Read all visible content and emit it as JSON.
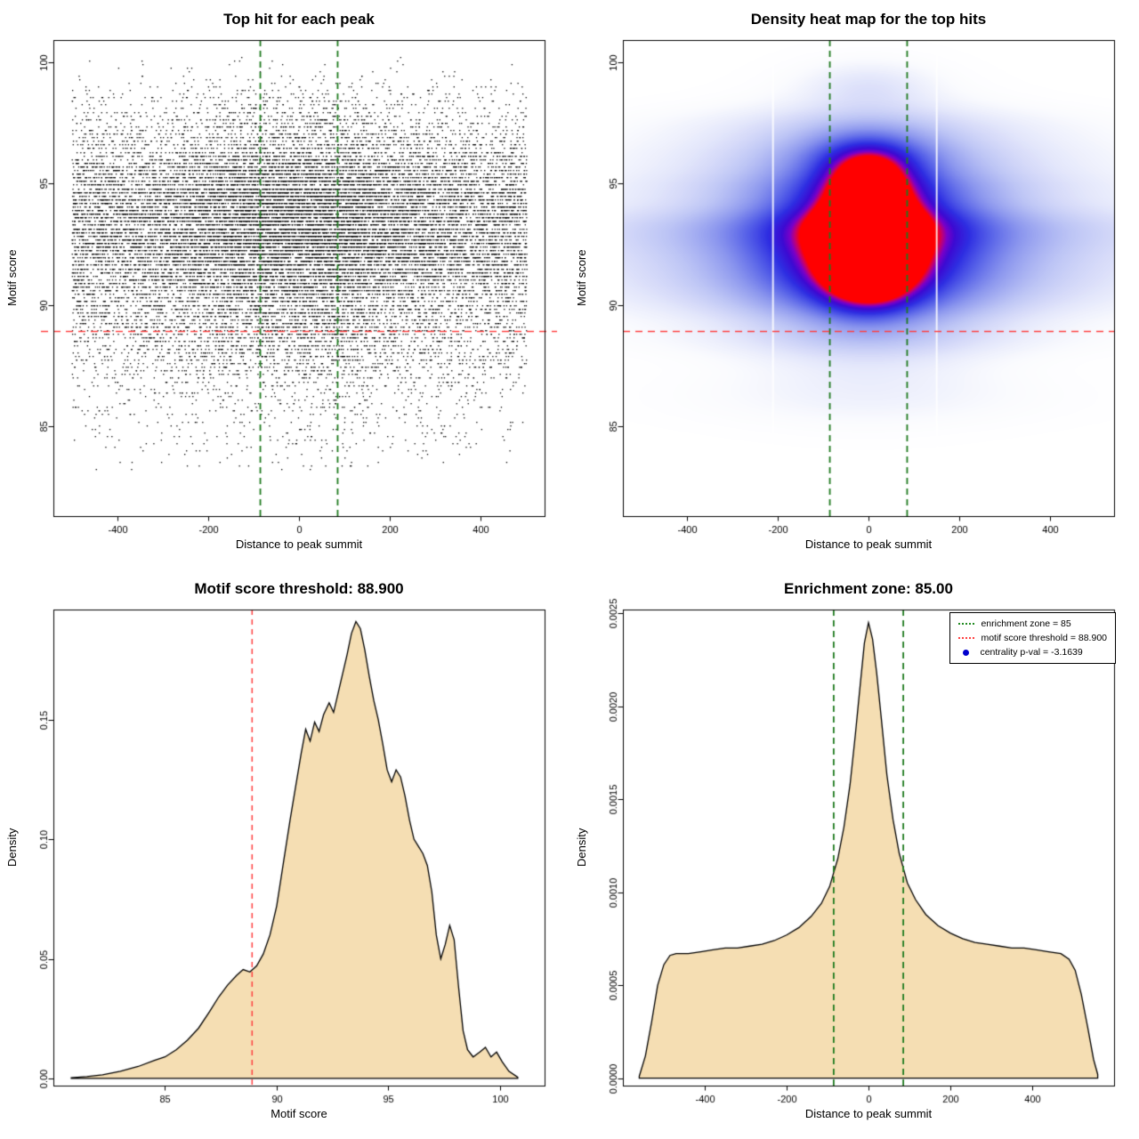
{
  "figure": {
    "background": "#ffffff"
  },
  "chart_data": [
    {
      "type": "scatter",
      "title": "Top hit for each peak",
      "xlabel": "Distance to peak summit",
      "ylabel": "Motif score",
      "xlim": [
        -540,
        540
      ],
      "ylim": [
        81.3,
        100.9
      ],
      "xticks": {
        "values": [
          -400,
          -200,
          0,
          200,
          400
        ],
        "labels": [
          "-400",
          "-200",
          "0",
          "200",
          "400"
        ]
      },
      "yticks": {
        "values": [
          85,
          90,
          95,
          100
        ],
        "labels": [
          "85",
          "90",
          "95",
          "100"
        ]
      },
      "point_color": "#000000",
      "n_points": 22000,
      "seed": 1234,
      "x_uniform_frac": 0.72,
      "x_uniform_range": [
        -500,
        500
      ],
      "x_normal_sd": 150,
      "score_band_step": 0.15,
      "score_range": [
        83.2,
        100.2
      ],
      "score_mixture": [
        {
          "mean": 93.3,
          "sd": 1.5,
          "w": 0.48
        },
        {
          "mean": 91.2,
          "sd": 1.6,
          "w": 0.2
        },
        {
          "mean": 95.4,
          "sd": 1.1,
          "w": 0.14
        },
        {
          "mean": 88.8,
          "sd": 1.4,
          "w": 0.1
        },
        {
          "mean": 97.6,
          "sd": 1.0,
          "w": 0.05
        },
        {
          "mean": 86.2,
          "sd": 1.8,
          "w": 0.03
        }
      ],
      "threshold_line": {
        "y": 88.9,
        "color": "#ff4040"
      },
      "zone_lines": {
        "x": [
          -85,
          85
        ],
        "color": "#1f7a1f"
      }
    },
    {
      "type": "heatmap",
      "title": "Density heat map for the top hits",
      "xlabel": "Distance to peak summit",
      "ylabel": "Motif score",
      "xlim": [
        -540,
        540
      ],
      "ylim": [
        81.3,
        100.9
      ],
      "xticks": {
        "values": [
          -400,
          -200,
          0,
          200,
          400
        ],
        "labels": [
          "-400",
          "-200",
          "0",
          "200",
          "400"
        ]
      },
      "yticks": {
        "values": [
          85,
          90,
          95,
          100
        ],
        "labels": [
          "85",
          "90",
          "95",
          "100"
        ]
      },
      "colormap": [
        [
          0.0,
          "#ffffff"
        ],
        [
          0.04,
          "#fafbfe"
        ],
        [
          0.12,
          "#e3e6fb"
        ],
        [
          0.25,
          "#bcc4f5"
        ],
        [
          0.4,
          "#8b96ee"
        ],
        [
          0.55,
          "#5560e8"
        ],
        [
          0.68,
          "#2e2ee2"
        ],
        [
          0.8,
          "#3c0ad2"
        ],
        [
          0.88,
          "#7a00c8"
        ],
        [
          0.94,
          "#c40070"
        ],
        [
          1.0,
          "#ff0000"
        ]
      ],
      "components": [
        {
          "cx": 0,
          "cy": 93.3,
          "sx": 38,
          "sy": 0.7,
          "a": 1.5
        },
        {
          "cx": 0,
          "cy": 93.0,
          "sx": 75,
          "sy": 1.4,
          "a": 0.85
        },
        {
          "cx": 0,
          "cy": 92.8,
          "sx": 160,
          "sy": 2.2,
          "a": 0.5
        },
        {
          "cx": 0,
          "cy": 92.6,
          "sx": 200,
          "sy": 3.0,
          "a": 0.28
        },
        {
          "cx": 0,
          "cy": 91.0,
          "sx": 70,
          "sy": 0.9,
          "a": 0.45
        },
        {
          "cx": 0,
          "cy": 95.3,
          "sx": 60,
          "sy": 0.8,
          "a": 0.42
        },
        {
          "cx": 0,
          "cy": 96.2,
          "sx": 100,
          "sy": 0.8,
          "a": 0.22
        },
        {
          "cx": 0,
          "cy": 99.0,
          "sx": 100,
          "sy": 0.7,
          "a": 0.1
        },
        {
          "cx": 0,
          "cy": 93.3,
          "sx": 420,
          "sy": 0.75,
          "a": 0.28
        },
        {
          "cx": 0,
          "cy": 92.1,
          "sx": 420,
          "sy": 0.8,
          "a": 0.22
        },
        {
          "cx": 0,
          "cy": 90.9,
          "sx": 400,
          "sy": 0.7,
          "a": 0.18
        },
        {
          "cx": 0,
          "cy": 94.9,
          "sx": 400,
          "sy": 0.6,
          "a": 0.16
        },
        {
          "cx": 0,
          "cy": 96.1,
          "sx": 380,
          "sy": 0.6,
          "a": 0.12
        },
        {
          "cx": 0,
          "cy": 97.3,
          "sx": 350,
          "sy": 0.65,
          "a": 0.1
        },
        {
          "cx": 0,
          "cy": 89.9,
          "sx": 400,
          "sy": 0.6,
          "a": 0.1
        },
        {
          "cx": 0,
          "cy": 88.6,
          "sx": 380,
          "sy": 0.55,
          "a": 0.07
        },
        {
          "cx": 0,
          "cy": 86.2,
          "sx": 320,
          "sy": 0.9,
          "a": 0.05
        }
      ],
      "gap_lines_x": [
        -210,
        150
      ],
      "threshold_line": {
        "y": 88.9,
        "color": "#ff4040"
      },
      "zone_lines": {
        "x": [
          -85,
          85
        ],
        "color": "#1f7a1f"
      }
    },
    {
      "type": "area",
      "title": "Motif score threshold: 88.900",
      "xlabel": "Motif score",
      "ylabel": "Density",
      "xlim": [
        80,
        102
      ],
      "ylim": [
        -0.003,
        0.196
      ],
      "xticks": {
        "values": [
          85,
          90,
          95,
          100
        ],
        "labels": [
          "85",
          "90",
          "95",
          "100"
        ]
      },
      "yticks": {
        "values": [
          0,
          0.05,
          0.1,
          0.15
        ],
        "labels": [
          "0.00",
          "0.05",
          "0.10",
          "0.15"
        ]
      },
      "fill_color": "#f5deb3",
      "line_color": "#000000",
      "vlines": [
        {
          "x": 88.9,
          "color": "#ff4040",
          "width": 1.5,
          "dash": [
            6,
            5
          ]
        }
      ],
      "points": [
        [
          80.8,
          0.0003
        ],
        [
          81.5,
          0.0008
        ],
        [
          82.2,
          0.0015
        ],
        [
          83.0,
          0.003
        ],
        [
          83.8,
          0.005
        ],
        [
          84.5,
          0.0075
        ],
        [
          85.0,
          0.009
        ],
        [
          85.5,
          0.012
        ],
        [
          86.0,
          0.016
        ],
        [
          86.5,
          0.021
        ],
        [
          87.0,
          0.028
        ],
        [
          87.4,
          0.034
        ],
        [
          87.8,
          0.039
        ],
        [
          88.2,
          0.043
        ],
        [
          88.5,
          0.0455
        ],
        [
          88.8,
          0.0445
        ],
        [
          89.1,
          0.047
        ],
        [
          89.4,
          0.052
        ],
        [
          89.7,
          0.06
        ],
        [
          90.0,
          0.072
        ],
        [
          90.3,
          0.09
        ],
        [
          90.6,
          0.108
        ],
        [
          90.85,
          0.122
        ],
        [
          91.1,
          0.136
        ],
        [
          91.3,
          0.146
        ],
        [
          91.5,
          0.141
        ],
        [
          91.7,
          0.149
        ],
        [
          91.9,
          0.145
        ],
        [
          92.1,
          0.152
        ],
        [
          92.35,
          0.157
        ],
        [
          92.55,
          0.153
        ],
        [
          92.75,
          0.161
        ],
        [
          92.95,
          0.169
        ],
        [
          93.15,
          0.177
        ],
        [
          93.35,
          0.186
        ],
        [
          93.55,
          0.191
        ],
        [
          93.75,
          0.188
        ],
        [
          93.95,
          0.179
        ],
        [
          94.15,
          0.168
        ],
        [
          94.35,
          0.158
        ],
        [
          94.55,
          0.15
        ],
        [
          94.75,
          0.14
        ],
        [
          94.95,
          0.129
        ],
        [
          95.15,
          0.124
        ],
        [
          95.35,
          0.129
        ],
        [
          95.55,
          0.126
        ],
        [
          95.75,
          0.118
        ],
        [
          95.95,
          0.108
        ],
        [
          96.15,
          0.1
        ],
        [
          96.35,
          0.097
        ],
        [
          96.55,
          0.094
        ],
        [
          96.75,
          0.089
        ],
        [
          96.95,
          0.078
        ],
        [
          97.15,
          0.06
        ],
        [
          97.35,
          0.05
        ],
        [
          97.55,
          0.056
        ],
        [
          97.75,
          0.064
        ],
        [
          97.95,
          0.058
        ],
        [
          98.15,
          0.038
        ],
        [
          98.35,
          0.02
        ],
        [
          98.55,
          0.012
        ],
        [
          98.8,
          0.009
        ],
        [
          99.1,
          0.011
        ],
        [
          99.35,
          0.013
        ],
        [
          99.6,
          0.009
        ],
        [
          99.85,
          0.011
        ],
        [
          100.1,
          0.007
        ],
        [
          100.4,
          0.003
        ],
        [
          100.8,
          0.0005
        ]
      ]
    },
    {
      "type": "area",
      "title": "Enrichment zone: 85.00",
      "xlabel": "Distance to peak summit",
      "ylabel": "Density",
      "xlim": [
        -600,
        600
      ],
      "ylim": [
        -4e-05,
        0.00252
      ],
      "xticks": {
        "values": [
          -400,
          -200,
          0,
          200,
          400
        ],
        "labels": [
          "-400",
          "-200",
          "0",
          "200",
          "400"
        ]
      },
      "yticks": {
        "values": [
          0,
          0.0005,
          0.001,
          0.0015,
          0.002,
          0.0025
        ],
        "labels": [
          "0.0000",
          "0.0005",
          "0.0010",
          "0.0015",
          "0.0020",
          "0.0025"
        ]
      },
      "fill_color": "#f5deb3",
      "line_color": "#000000",
      "vlines": [
        {
          "x": -85,
          "color": "#1f7a1f",
          "width": 1.8,
          "dash": [
            7,
            5
          ]
        },
        {
          "x": 85,
          "color": "#1f7a1f",
          "width": 1.8,
          "dash": [
            7,
            5
          ]
        }
      ],
      "points": [
        [
          -560,
          1e-05
        ],
        [
          -545,
          0.00012
        ],
        [
          -530,
          0.0003
        ],
        [
          -515,
          0.0005
        ],
        [
          -500,
          0.00061
        ],
        [
          -485,
          0.00066
        ],
        [
          -470,
          0.00067
        ],
        [
          -440,
          0.00067
        ],
        [
          -410,
          0.00068
        ],
        [
          -380,
          0.00069
        ],
        [
          -350,
          0.0007
        ],
        [
          -320,
          0.0007
        ],
        [
          -290,
          0.00071
        ],
        [
          -260,
          0.00072
        ],
        [
          -230,
          0.00074
        ],
        [
          -200,
          0.00077
        ],
        [
          -170,
          0.00081
        ],
        [
          -140,
          0.00087
        ],
        [
          -115,
          0.00094
        ],
        [
          -95,
          0.00103
        ],
        [
          -75,
          0.00118
        ],
        [
          -60,
          0.00135
        ],
        [
          -45,
          0.00158
        ],
        [
          -32,
          0.00185
        ],
        [
          -20,
          0.00212
        ],
        [
          -10,
          0.00234
        ],
        [
          0,
          0.00245
        ],
        [
          10,
          0.00236
        ],
        [
          20,
          0.00218
        ],
        [
          32,
          0.00192
        ],
        [
          45,
          0.00163
        ],
        [
          60,
          0.00139
        ],
        [
          75,
          0.00121
        ],
        [
          95,
          0.00105
        ],
        [
          115,
          0.00096
        ],
        [
          140,
          0.00088
        ],
        [
          170,
          0.00082
        ],
        [
          200,
          0.00078
        ],
        [
          230,
          0.00075
        ],
        [
          260,
          0.00073
        ],
        [
          290,
          0.00072
        ],
        [
          320,
          0.00071
        ],
        [
          350,
          0.0007
        ],
        [
          380,
          0.0007
        ],
        [
          410,
          0.00069
        ],
        [
          440,
          0.00068
        ],
        [
          470,
          0.00067
        ],
        [
          490,
          0.00064
        ],
        [
          505,
          0.00058
        ],
        [
          520,
          0.00045
        ],
        [
          535,
          0.00028
        ],
        [
          550,
          0.0001
        ],
        [
          560,
          2e-05
        ]
      ],
      "legend": {
        "items": [
          {
            "label": "enrichment zone = 85",
            "marker": "line-dotted",
            "color": "#228B22"
          },
          {
            "label": "motif score threshold = 88.900",
            "marker": "line-dotted",
            "color": "#ff4040"
          },
          {
            "label": "centrality p-val = -3.1639",
            "marker": "dot",
            "color": "#0000cd"
          }
        ]
      }
    }
  ]
}
